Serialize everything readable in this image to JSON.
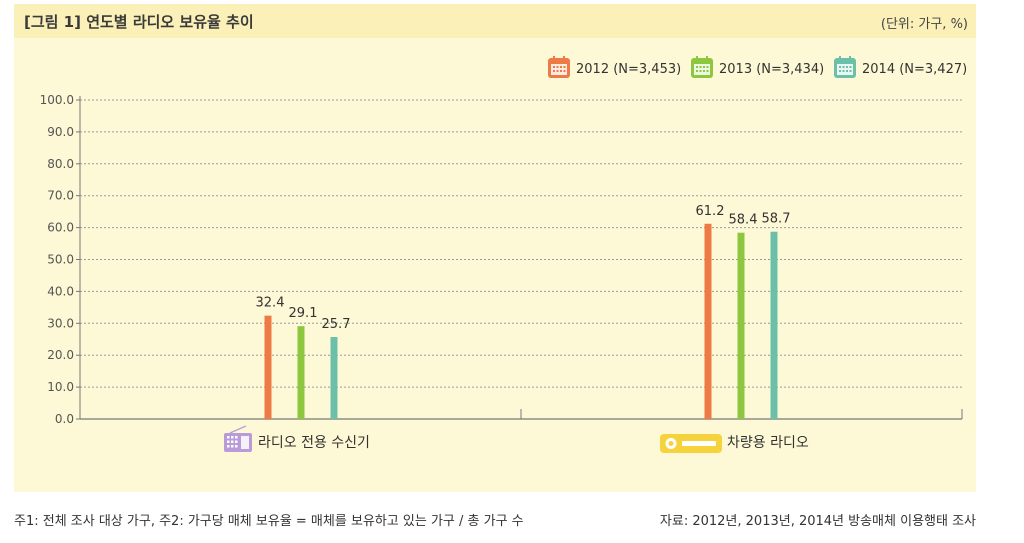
{
  "header": {
    "title": "[그림 1]  연도별 라디오 보유율 추이",
    "unit": "(단위: 가구, %)"
  },
  "footer": {
    "note": "주1: 전체 조사 대상 가구, 주2: 가구당 매체 보유율 = 매체를 보유하고 있는 가구 / 총 가구 수",
    "source": "자료: 2012년, 2013년, 2014년 방송매체 이용행태 조사"
  },
  "chart_data": {
    "type": "bar",
    "categories": [
      "라디오 전용 수신기",
      "차량용 라디오"
    ],
    "category_icons": [
      "radio-icon",
      "car-radio-icon"
    ],
    "series": [
      {
        "name": "2012 (N=3,453)",
        "values": [
          32.4,
          61.2
        ],
        "color": "#ee7a45",
        "icon": "calendar-icon"
      },
      {
        "name": "2013 (N=3,434)",
        "values": [
          29.1,
          58.4
        ],
        "color": "#8dc63f",
        "icon": "calendar-icon"
      },
      {
        "name": "2014 (N=3,427)",
        "values": [
          25.7,
          58.7
        ],
        "color": "#6cbfa8",
        "icon": "calendar-icon"
      }
    ],
    "yticks": [
      "0.0",
      "10.0",
      "20.0",
      "30.0",
      "40.0",
      "50.0",
      "60.0",
      "70.0",
      "80.0",
      "90.0",
      "100.0"
    ],
    "ylim": [
      0,
      100
    ],
    "grid": true,
    "legend_position": "top-right"
  }
}
